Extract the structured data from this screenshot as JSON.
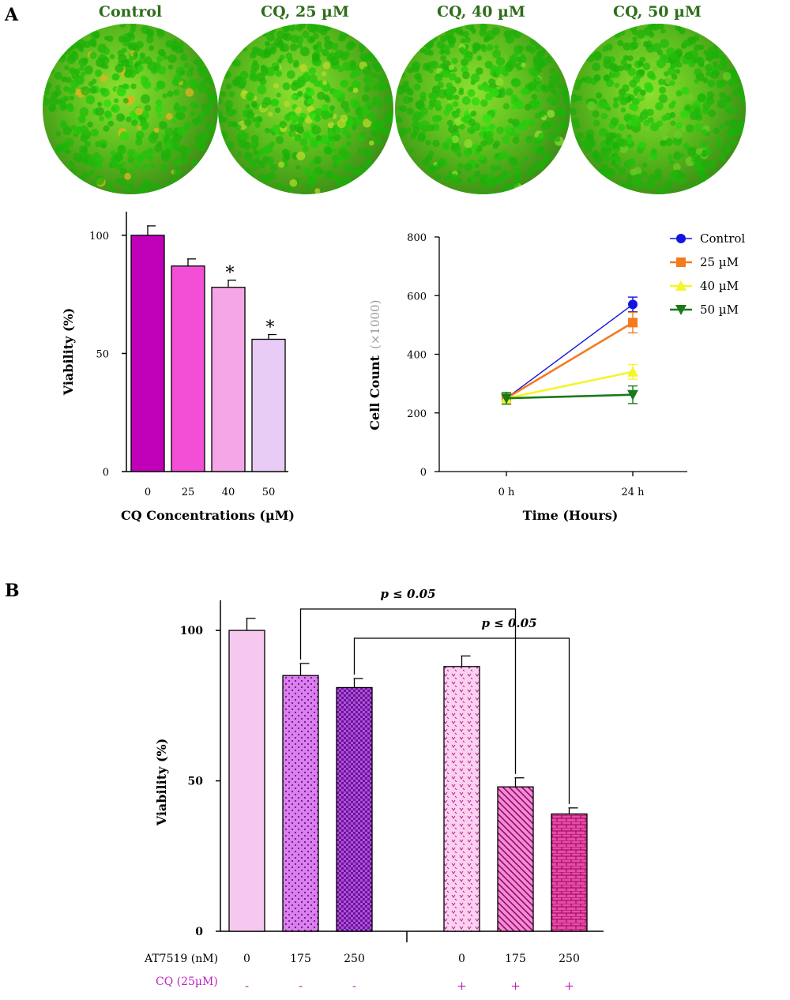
{
  "panel_a_label": "A",
  "panel_b_label": "B",
  "micrographs": [
    {
      "title": "Control",
      "tint": "#d8b520"
    },
    {
      "title": "CQ, 25 µM",
      "tint": "#b7d82a"
    },
    {
      "title": "CQ, 40 µM",
      "tint": "#8fe030"
    },
    {
      "title": "CQ, 50 µM",
      "tint": "#6ccc26"
    }
  ],
  "chart_data": [
    {
      "type": "bar",
      "xlabel": "CQ Concentrations (µM)",
      "ylabel": "Viability (%)",
      "categories": [
        "0",
        "25",
        "40",
        "50"
      ],
      "values": [
        100,
        87,
        78,
        56
      ],
      "errors": [
        4,
        3,
        3,
        2
      ],
      "significance": [
        "",
        "",
        "*",
        "*"
      ],
      "colors": [
        "#c000b8",
        "#f24fd6",
        "#f4a6e6",
        "#e8ccf5"
      ],
      "ylim": [
        0,
        110
      ],
      "yticks": [
        0,
        50,
        100
      ]
    },
    {
      "type": "line",
      "xlabel": "Time (Hours)",
      "ylabel": "Cell Count",
      "ylabel_unit": "(×1000)",
      "categories": [
        "0 h",
        "24 h"
      ],
      "ylim": [
        0,
        800
      ],
      "yticks": [
        0,
        200,
        400,
        600,
        800
      ],
      "legend_position": "top-right",
      "series": [
        {
          "name": "Control",
          "values": [
            250,
            570
          ],
          "errors": [
            20,
            25
          ],
          "color": "#1414e0",
          "marker": "circle"
        },
        {
          "name": "25 µM",
          "values": [
            250,
            508
          ],
          "errors": [
            20,
            35
          ],
          "color": "#f47a1e",
          "marker": "square"
        },
        {
          "name": "40 µM",
          "values": [
            250,
            340
          ],
          "errors": [
            20,
            25
          ],
          "color": "#f5f528",
          "marker": "triangle-up"
        },
        {
          "name": "50 µM",
          "values": [
            250,
            262
          ],
          "errors": [
            20,
            30
          ],
          "color": "#1a7a1a",
          "marker": "triangle-down"
        }
      ]
    },
    {
      "type": "bar",
      "ylabel": "Viability (%)",
      "ylim": [
        0,
        110
      ],
      "yticks": [
        0,
        50,
        100
      ],
      "row_labels": {
        "at7519": "AT7519 (nM)",
        "cq": "CQ (25µM)"
      },
      "cq_color": "#c020c0",
      "groups": [
        {
          "at7519": "0",
          "cq": "-",
          "value": 100,
          "error": 4,
          "pattern": "solid"
        },
        {
          "at7519": "175",
          "cq": "-",
          "value": 85,
          "error": 4,
          "pattern": "dots"
        },
        {
          "at7519": "250",
          "cq": "-",
          "value": 81,
          "error": 3,
          "pattern": "checker"
        },
        {
          "at7519": "0",
          "cq": "+",
          "value": 88,
          "error": 3.5,
          "pattern": "hearts"
        },
        {
          "at7519": "175",
          "cq": "+",
          "value": 48,
          "error": 3,
          "pattern": "diagonal"
        },
        {
          "at7519": "250",
          "cq": "+",
          "value": 39,
          "error": 2,
          "pattern": "bricks"
        }
      ],
      "comparisons": [
        {
          "from": 1,
          "to": 4,
          "label": "p ≤ 0.05"
        },
        {
          "from": 2,
          "to": 5,
          "label": "p ≤ 0.05"
        }
      ]
    }
  ]
}
